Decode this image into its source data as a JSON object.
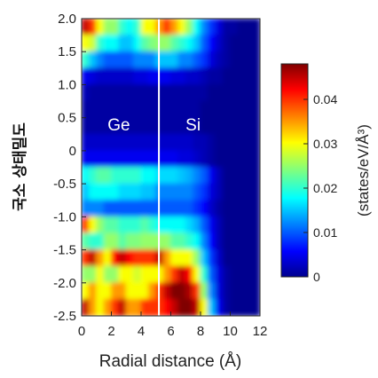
{
  "chart_data": {
    "type": "heatmap",
    "xlabel": "Radial distance (Å)",
    "ylabel": "국소 상태밀도",
    "xlim": [
      0,
      12
    ],
    "ylim": [
      -2.5,
      2.0
    ],
    "x_ticks": [
      "0",
      "2",
      "4",
      "6",
      "8",
      "10",
      "12"
    ],
    "y_ticks": [
      "2.0",
      "1.5",
      "1.0",
      "0.5",
      "0",
      "-0.5",
      "-1.0",
      "-1.5",
      "-2.0",
      "-2.5"
    ],
    "interface_x": 5.2,
    "region_labels": [
      {
        "text": "Ge",
        "x": 2.5,
        "y": 0.4
      },
      {
        "text": "Si",
        "x": 7.5,
        "y": 0.4
      }
    ],
    "colorbar": {
      "label": "(states/eV/Å³)",
      "range": [
        0,
        0.048
      ],
      "ticks": [
        "0",
        "0.01",
        "0.02",
        "0.03",
        "0.04"
      ]
    },
    "x_centers": [
      0.25,
      0.75,
      1.25,
      1.75,
      2.25,
      2.75,
      3.25,
      3.75,
      4.25,
      4.75,
      5.25,
      5.75,
      6.25,
      6.75,
      7.25,
      7.75,
      8.25,
      8.75,
      9.25,
      9.75,
      10.25,
      10.75,
      11.25,
      11.75
    ],
    "y_centers": [
      1.875,
      1.625,
      1.375,
      1.125,
      0.875,
      0.625,
      0.375,
      0.125,
      -0.125,
      -0.375,
      -0.625,
      -0.875,
      -1.125,
      -1.375,
      -1.625,
      -1.875,
      -2.125,
      -2.375
    ],
    "values": [
      [
        0.045,
        0.04,
        0.03,
        0.025,
        0.025,
        0.02,
        0.018,
        0.02,
        0.03,
        0.03,
        0.035,
        0.04,
        0.035,
        0.03,
        0.025,
        0.018,
        0.012,
        0.008,
        0.004,
        0.001,
        0.001,
        0,
        0,
        0
      ],
      [
        0.03,
        0.028,
        0.02,
        0.018,
        0.018,
        0.015,
        0.015,
        0.018,
        0.022,
        0.024,
        0.025,
        0.025,
        0.022,
        0.02,
        0.018,
        0.015,
        0.01,
        0.006,
        0.003,
        0.001,
        0,
        0,
        0,
        0
      ],
      [
        0.02,
        0.015,
        0.012,
        0.01,
        0.01,
        0.01,
        0.01,
        0.012,
        0.012,
        0.012,
        0.015,
        0.015,
        0.015,
        0.012,
        0.012,
        0.01,
        0.008,
        0.004,
        0.002,
        0.001,
        0,
        0,
        0,
        0
      ],
      [
        0.005,
        0.004,
        0.003,
        0.003,
        0.003,
        0.003,
        0.003,
        0.004,
        0.004,
        0.005,
        0.005,
        0.005,
        0.004,
        0.004,
        0.003,
        0.003,
        0.002,
        0.001,
        0.001,
        0,
        0,
        0,
        0,
        0
      ],
      [
        0.002,
        0.001,
        0.001,
        0.001,
        0.001,
        0.001,
        0.001,
        0.001,
        0.001,
        0.001,
        0.001,
        0.001,
        0.001,
        0.001,
        0.001,
        0.001,
        0.001,
        0,
        0,
        0,
        0,
        0,
        0,
        0
      ],
      [
        0.001,
        0.001,
        0.001,
        0.001,
        0.001,
        0.001,
        0.001,
        0.001,
        0.001,
        0.001,
        0.001,
        0.001,
        0.001,
        0.001,
        0.001,
        0.001,
        0,
        0,
        0,
        0,
        0,
        0,
        0,
        0
      ],
      [
        0.001,
        0.001,
        0.001,
        0.001,
        0.001,
        0.001,
        0.001,
        0.001,
        0.001,
        0.001,
        0.001,
        0.001,
        0.001,
        0.001,
        0.001,
        0.001,
        0,
        0,
        0,
        0,
        0,
        0,
        0,
        0
      ],
      [
        0.003,
        0.003,
        0.003,
        0.003,
        0.003,
        0.003,
        0.003,
        0.003,
        0.003,
        0.003,
        0.003,
        0.003,
        0.003,
        0.003,
        0.003,
        0.002,
        0.002,
        0.001,
        0,
        0,
        0,
        0,
        0,
        0
      ],
      [
        0.005,
        0.005,
        0.005,
        0.005,
        0.005,
        0.005,
        0.005,
        0.005,
        0.005,
        0.005,
        0.005,
        0.005,
        0.005,
        0.004,
        0.004,
        0.003,
        0.002,
        0.001,
        0,
        0,
        0,
        0,
        0,
        0
      ],
      [
        0.018,
        0.02,
        0.022,
        0.022,
        0.02,
        0.02,
        0.02,
        0.02,
        0.018,
        0.018,
        0.016,
        0.016,
        0.016,
        0.015,
        0.014,
        0.012,
        0.01,
        0.005,
        0.002,
        0,
        0,
        0,
        0,
        0
      ],
      [
        0.015,
        0.018,
        0.018,
        0.018,
        0.018,
        0.016,
        0.016,
        0.016,
        0.015,
        0.015,
        0.012,
        0.012,
        0.012,
        0.012,
        0.012,
        0.01,
        0.008,
        0.004,
        0.002,
        0,
        0,
        0,
        0,
        0
      ],
      [
        0.012,
        0.012,
        0.012,
        0.01,
        0.01,
        0.01,
        0.01,
        0.01,
        0.01,
        0.01,
        0.01,
        0.01,
        0.01,
        0.01,
        0.01,
        0.008,
        0.006,
        0.003,
        0.001,
        0,
        0,
        0,
        0,
        0
      ],
      [
        0.04,
        0.03,
        0.025,
        0.022,
        0.022,
        0.02,
        0.02,
        0.02,
        0.022,
        0.02,
        0.018,
        0.018,
        0.018,
        0.018,
        0.016,
        0.014,
        0.01,
        0.005,
        0.002,
        0,
        0,
        0,
        0,
        0
      ],
      [
        0.022,
        0.02,
        0.02,
        0.025,
        0.025,
        0.022,
        0.024,
        0.024,
        0.025,
        0.025,
        0.025,
        0.025,
        0.022,
        0.022,
        0.02,
        0.018,
        0.012,
        0.006,
        0.002,
        0,
        0,
        0,
        0,
        0
      ],
      [
        0.04,
        0.045,
        0.035,
        0.03,
        0.042,
        0.045,
        0.042,
        0.04,
        0.04,
        0.04,
        0.045,
        0.035,
        0.03,
        0.03,
        0.03,
        0.025,
        0.015,
        0.008,
        0.003,
        0,
        0,
        0,
        0,
        0
      ],
      [
        0.025,
        0.025,
        0.03,
        0.025,
        0.025,
        0.03,
        0.03,
        0.028,
        0.03,
        0.03,
        0.03,
        0.035,
        0.04,
        0.045,
        0.042,
        0.03,
        0.02,
        0.01,
        0.004,
        0.001,
        0,
        0,
        0,
        0
      ],
      [
        0.03,
        0.035,
        0.03,
        0.03,
        0.035,
        0.035,
        0.03,
        0.03,
        0.03,
        0.035,
        0.04,
        0.045,
        0.048,
        0.048,
        0.046,
        0.04,
        0.025,
        0.012,
        0.004,
        0.001,
        0,
        0,
        0,
        0
      ],
      [
        0.045,
        0.035,
        0.03,
        0.035,
        0.04,
        0.045,
        0.035,
        0.035,
        0.04,
        0.04,
        0.04,
        0.042,
        0.045,
        0.048,
        0.048,
        0.045,
        0.03,
        0.015,
        0.005,
        0.001,
        0,
        0,
        0,
        0
      ]
    ]
  }
}
